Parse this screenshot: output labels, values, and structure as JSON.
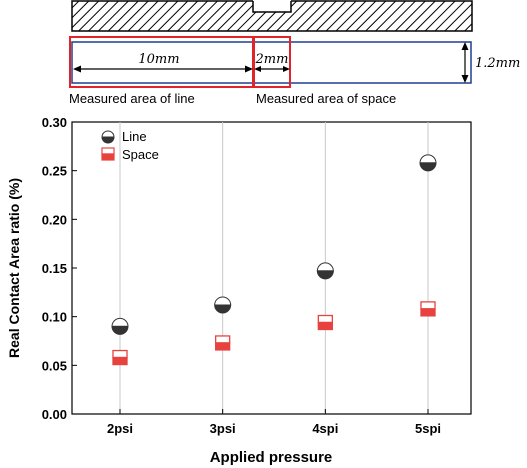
{
  "diagram": {
    "dim_10": "10mm",
    "dim_2": "2mm",
    "dim_height": "1.2mm",
    "label_line": "Measured area of line",
    "label_space": "Measured area of space"
  },
  "chart_data": {
    "type": "scatter",
    "title": "",
    "xlabel": "Applied pressure",
    "ylabel": "Real Contact Area ratio (%)",
    "categories": [
      "2psi",
      "3psi",
      "4spi",
      "5spi"
    ],
    "ylim": [
      0.0,
      0.3
    ],
    "yticks": [
      "0.00",
      "0.05",
      "0.10",
      "0.15",
      "0.20",
      "0.25",
      "0.30"
    ],
    "grid": "vertical",
    "legend": "top-left",
    "series": [
      {
        "name": "Line",
        "marker": "half-filled-circle",
        "color": "#333333",
        "values": [
          0.09,
          0.112,
          0.147,
          0.258
        ]
      },
      {
        "name": "Space",
        "marker": "half-filled-square",
        "color": "#e8423f",
        "values": [
          0.058,
          0.073,
          0.094,
          0.108
        ]
      }
    ]
  }
}
